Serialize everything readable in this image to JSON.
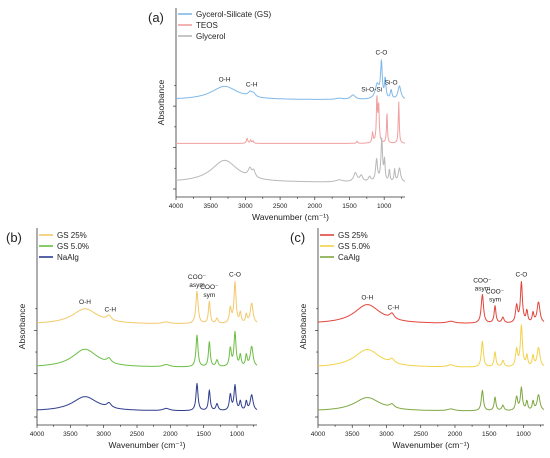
{
  "chart_data": [
    {
      "panel_label": "(a)",
      "type": "line",
      "xlabel": "Wavenumber (cm⁻¹)",
      "ylabel": "Absorbance",
      "xlim": [
        4000,
        700
      ],
      "x_reversed": true,
      "xticks": [
        "4000",
        "3500",
        "3000",
        "2500",
        "2000",
        "1500",
        "1000"
      ],
      "y_ticks_unlabeled": true,
      "legend_position": "top-left",
      "series": [
        {
          "name": "Gycerol-Silicate (GS)",
          "color": "#7fb8e8",
          "offset": 2.0,
          "peaks": [
            [
              3300,
              0.55,
              230
            ],
            [
              2930,
              0.18,
              35
            ],
            [
              2880,
              0.12,
              30
            ],
            [
              1650,
              0.05,
              60
            ],
            [
              1450,
              0.18,
              40
            ],
            [
              1100,
              0.6,
              35
            ],
            [
              1040,
              1.45,
              14
            ],
            [
              985,
              0.8,
              12
            ],
            [
              900,
              0.35,
              14
            ],
            [
              780,
              0.55,
              25
            ]
          ],
          "baseline": 0.12
        },
        {
          "name": "TEOS",
          "color": "#f0a0a0",
          "offset": 1.05,
          "peaks": [
            [
              2975,
              0.12,
              12
            ],
            [
              2925,
              0.08,
              10
            ],
            [
              2890,
              0.06,
              10
            ],
            [
              1390,
              0.05,
              10
            ],
            [
              1167,
              0.25,
              10
            ],
            [
              1105,
              1.1,
              9
            ],
            [
              1080,
              0.9,
              10
            ],
            [
              960,
              0.75,
              8
            ],
            [
              790,
              1.0,
              8
            ]
          ],
          "baseline": 0.02
        },
        {
          "name": "Glycerol",
          "color": "#b8b8b8",
          "offset": 0.0,
          "peaks": [
            [
              3300,
              0.55,
              230
            ],
            [
              2935,
              0.2,
              30
            ],
            [
              2880,
              0.16,
              25
            ],
            [
              1650,
              0.05,
              60
            ],
            [
              1415,
              0.22,
              30
            ],
            [
              1330,
              0.15,
              25
            ],
            [
              1210,
              0.12,
              20
            ],
            [
              1110,
              0.55,
              16
            ],
            [
              1035,
              1.05,
              14
            ],
            [
              995,
              0.5,
              10
            ],
            [
              925,
              0.3,
              10
            ],
            [
              850,
              0.3,
              10
            ],
            [
              780,
              0.35,
              20
            ]
          ],
          "baseline": 0.08
        }
      ],
      "annotations": [
        {
          "text": "O-H",
          "x": 3300,
          "series": 0
        },
        {
          "text": "C-H",
          "x": 2910,
          "series": 0
        },
        {
          "text": "Si-O-Si",
          "x": 1180,
          "series": 0
        },
        {
          "text": "C-O",
          "x": 1040,
          "series": 0
        },
        {
          "text": "Si-O",
          "x": 900,
          "series": 0
        }
      ]
    },
    {
      "panel_label": "(b)",
      "type": "line",
      "xlabel": "Wavenumber (cm⁻¹)",
      "ylabel": "Absorbance",
      "xlim": [
        4000,
        700
      ],
      "x_reversed": true,
      "xticks": [
        "4000",
        "3500",
        "3000",
        "2500",
        "2000",
        "1500",
        "1000"
      ],
      "y_ticks_unlabeled": true,
      "legend_position": "top-left",
      "series": [
        {
          "name": "GS 25%",
          "color": "#f2c96b",
          "offset": 2.0,
          "peaks": [
            [
              3280,
              0.45,
              230
            ],
            [
              2920,
              0.14,
              40
            ],
            [
              2060,
              0.05,
              60
            ],
            [
              1600,
              0.95,
              20
            ],
            [
              1415,
              0.65,
              16
            ],
            [
              1300,
              0.15,
              20
            ],
            [
              1100,
              0.45,
              18
            ],
            [
              1030,
              1.2,
              18
            ],
            [
              950,
              0.3,
              15
            ],
            [
              860,
              0.25,
              15
            ],
            [
              780,
              0.6,
              25
            ]
          ],
          "baseline": 0.08
        },
        {
          "name": "GS 5.0%",
          "color": "#6cbe45",
          "offset": 1.0,
          "peaks": [
            [
              3280,
              0.4,
              230
            ],
            [
              2920,
              0.1,
              40
            ],
            [
              2060,
              0.05,
              60
            ],
            [
              1600,
              0.7,
              18
            ],
            [
              1415,
              0.55,
              16
            ],
            [
              1300,
              0.15,
              20
            ],
            [
              1100,
              0.4,
              18
            ],
            [
              1030,
              0.75,
              18
            ],
            [
              950,
              0.25,
              15
            ],
            [
              860,
              0.25,
              15
            ],
            [
              780,
              0.45,
              25
            ]
          ],
          "baseline": 0.06
        },
        {
          "name": "NaAlg",
          "color": "#2f3d8f",
          "offset": 0.0,
          "peaks": [
            [
              3280,
              0.32,
              230
            ],
            [
              2920,
              0.1,
              40
            ],
            [
              2060,
              0.05,
              60
            ],
            [
              1600,
              0.6,
              18
            ],
            [
              1415,
              0.45,
              16
            ],
            [
              1300,
              0.15,
              20
            ],
            [
              1100,
              0.35,
              18
            ],
            [
              1030,
              0.55,
              18
            ],
            [
              950,
              0.2,
              15
            ],
            [
              860,
              0.2,
              15
            ],
            [
              780,
              0.35,
              25
            ]
          ],
          "baseline": 0.05
        }
      ],
      "annotations": [
        {
          "text": "O-H",
          "x": 3280,
          "series": 0
        },
        {
          "text": "C-H",
          "x": 2900,
          "series": 0
        },
        {
          "text": "COO⁻",
          "line2": "asym",
          "x": 1600,
          "series": 0
        },
        {
          "text": "COO⁻",
          "line2": "sym",
          "x": 1415,
          "series": 0
        },
        {
          "text": "C-O",
          "x": 1030,
          "series": 0
        }
      ]
    },
    {
      "panel_label": "(c)",
      "type": "line",
      "xlabel": "Wavenumber (cm⁻¹)",
      "ylabel": "Absorbance",
      "xlim": [
        4000,
        700
      ],
      "x_reversed": true,
      "xticks": [
        "4000",
        "3500",
        "3000",
        "2500",
        "2000",
        "1500",
        "1000"
      ],
      "y_ticks_unlabeled": true,
      "legend_position": "top-left",
      "series": [
        {
          "name": "GS 25%",
          "color": "#e0463c",
          "offset": 2.0,
          "peaks": [
            [
              3280,
              0.5,
              230
            ],
            [
              2920,
              0.14,
              40
            ],
            [
              2060,
              0.05,
              60
            ],
            [
              1600,
              0.75,
              20
            ],
            [
              1415,
              0.45,
              16
            ],
            [
              1300,
              0.15,
              20
            ],
            [
              1100,
              0.45,
              18
            ],
            [
              1030,
              1.05,
              18
            ],
            [
              950,
              0.3,
              15
            ],
            [
              860,
              0.25,
              15
            ],
            [
              780,
              0.55,
              25
            ]
          ],
          "baseline": 0.08
        },
        {
          "name": "GS 5.0%",
          "color": "#f2d24a",
          "offset": 1.0,
          "peaks": [
            [
              3280,
              0.42,
              230
            ],
            [
              2920,
              0.1,
              40
            ],
            [
              2060,
              0.05,
              60
            ],
            [
              1600,
              0.6,
              18
            ],
            [
              1415,
              0.35,
              16
            ],
            [
              1300,
              0.15,
              20
            ],
            [
              1100,
              0.4,
              18
            ],
            [
              1030,
              0.95,
              18
            ],
            [
              950,
              0.25,
              15
            ],
            [
              860,
              0.25,
              15
            ],
            [
              780,
              0.45,
              25
            ]
          ],
          "baseline": 0.06
        },
        {
          "name": "CaAlg",
          "color": "#7fa842",
          "offset": 0.0,
          "peaks": [
            [
              3280,
              0.3,
              230
            ],
            [
              2920,
              0.08,
              40
            ],
            [
              2060,
              0.04,
              60
            ],
            [
              1600,
              0.45,
              18
            ],
            [
              1415,
              0.3,
              16
            ],
            [
              1300,
              0.12,
              20
            ],
            [
              1100,
              0.3,
              18
            ],
            [
              1030,
              0.5,
              18
            ],
            [
              950,
              0.2,
              15
            ],
            [
              860,
              0.2,
              15
            ],
            [
              780,
              0.35,
              25
            ]
          ],
          "baseline": 0.05
        }
      ],
      "annotations": [
        {
          "text": "O-H",
          "x": 3280,
          "series": 0
        },
        {
          "text": "C-H",
          "x": 2900,
          "series": 0
        },
        {
          "text": "COO⁻",
          "line2": "asym",
          "x": 1600,
          "series": 0
        },
        {
          "text": "COO⁻",
          "line2": "sym",
          "x": 1415,
          "series": 0
        },
        {
          "text": "C-O",
          "x": 1030,
          "series": 0
        }
      ]
    }
  ]
}
